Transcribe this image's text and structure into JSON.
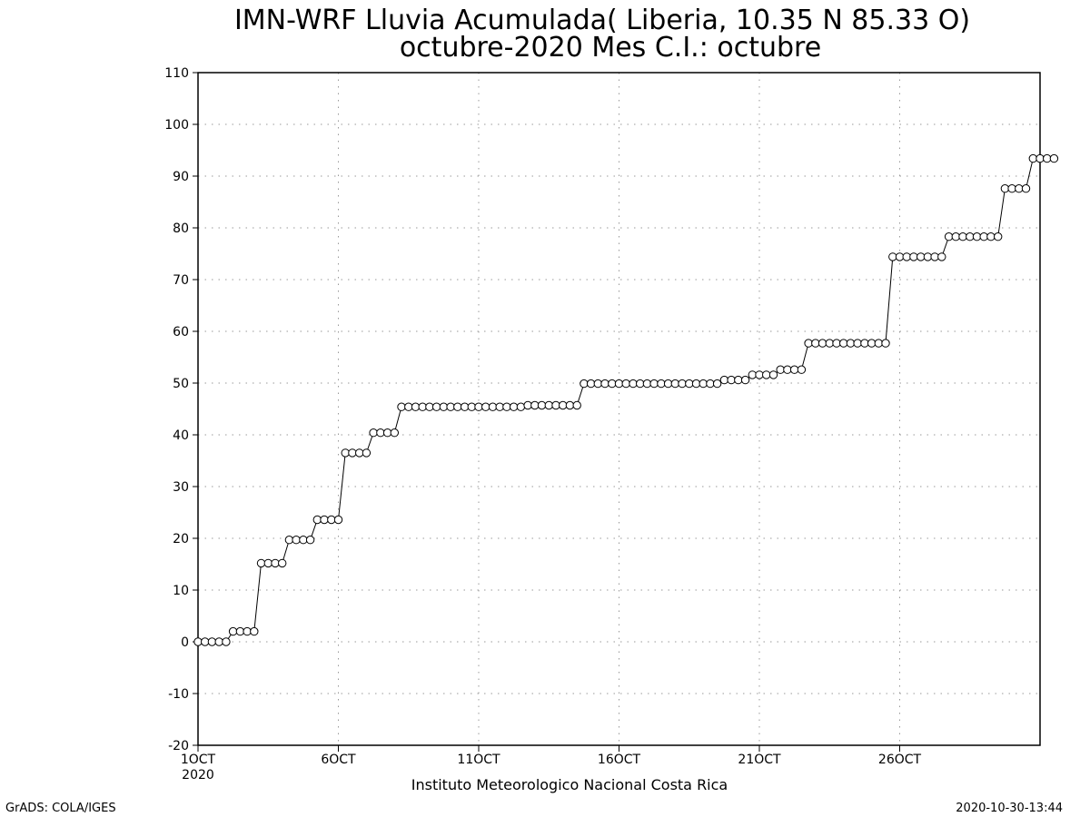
{
  "chart_data": {
    "type": "line",
    "title": "IMN-WRF  Lluvia Acumulada( Liberia, 10.35  N 85.33  O)",
    "subtitle": "octubre-2020 Mes C.I.: octubre",
    "xlabel": "Instituto Meteorologico Nacional Costa Rica",
    "ylabel": "",
    "ylim": [
      -20,
      110
    ],
    "yticks": [
      -20,
      -10,
      0,
      10,
      20,
      30,
      40,
      50,
      60,
      70,
      80,
      90,
      100,
      110
    ],
    "xlim": [
      1,
      31
    ],
    "x_unit_note": "Oct 2020",
    "xticks": [
      {
        "day": 1,
        "label": "1OCT",
        "sublabel": "2020"
      },
      {
        "day": 6,
        "label": "6OCT",
        "sublabel": ""
      },
      {
        "day": 11,
        "label": "11OCT",
        "sublabel": ""
      },
      {
        "day": 16,
        "label": "16OCT",
        "sublabel": ""
      },
      {
        "day": 21,
        "label": "21OCT",
        "sublabel": ""
      },
      {
        "day": 26,
        "label": "26OCT",
        "sublabel": ""
      }
    ],
    "grid": true,
    "marker": "open-circle",
    "line_color": "#000000",
    "series": [
      {
        "x_start_day": 1,
        "x_step_day": 0.25,
        "values": [
          0,
          0,
          0,
          0,
          0,
          2,
          2,
          2,
          2,
          15.2,
          15.2,
          15.2,
          15.2,
          19.7,
          19.7,
          19.7,
          19.7,
          23.6,
          23.6,
          23.6,
          23.6,
          36.5,
          36.5,
          36.5,
          36.5,
          40.4,
          40.4,
          40.4,
          40.4,
          45.4,
          45.4,
          45.4,
          45.4,
          45.4,
          45.4,
          45.4,
          45.4,
          45.4,
          45.4,
          45.4,
          45.4,
          45.4,
          45.4,
          45.4,
          45.4,
          45.4,
          45.4,
          45.7,
          45.7,
          45.7,
          45.7,
          45.7,
          45.7,
          45.7,
          45.7,
          49.9,
          49.9,
          49.9,
          49.9,
          49.9,
          49.9,
          49.9,
          49.9,
          49.9,
          49.9,
          49.9,
          49.9,
          49.9,
          49.9,
          49.9,
          49.9,
          49.9,
          49.9,
          49.9,
          49.9,
          50.6,
          50.6,
          50.6,
          50.6,
          51.6,
          51.6,
          51.6,
          51.6,
          52.6,
          52.6,
          52.6,
          52.6,
          57.7,
          57.7,
          57.7,
          57.7,
          57.7,
          57.7,
          57.7,
          57.7,
          57.7,
          57.7,
          57.7,
          57.7,
          74.4,
          74.4,
          74.4,
          74.4,
          74.4,
          74.4,
          74.4,
          74.4,
          78.3,
          78.3,
          78.3,
          78.3,
          78.3,
          78.3,
          78.3,
          78.3,
          87.6,
          87.6,
          87.6,
          87.6,
          93.4,
          93.4,
          93.4,
          93.4
        ]
      }
    ]
  },
  "footer": {
    "left": "GrADS: COLA/IGES",
    "right": "2020-10-30-13:44"
  }
}
